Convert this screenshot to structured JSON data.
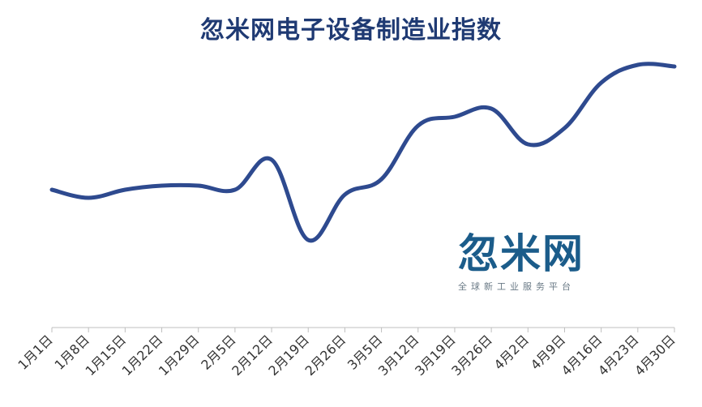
{
  "chart_data": {
    "type": "line",
    "title": "忽米网电子设备制造业指数",
    "xlabel": "",
    "ylabel": "",
    "categories": [
      "1月1日",
      "1月8日",
      "1月15日",
      "1月22日",
      "1月29日",
      "2月5日",
      "2月12日",
      "2月19日",
      "2月26日",
      "3月5日",
      "3月12日",
      "3月19日",
      "3月26日",
      "4月2日",
      "4月9日",
      "4月16日",
      "4月23日",
      "4月30日"
    ],
    "values": [
      234,
      244,
      234,
      229,
      229,
      234,
      197,
      296,
      240,
      221,
      155,
      144,
      134,
      178,
      158,
      102,
      80,
      82
    ],
    "y_inverted_screen_units": true,
    "grid": false,
    "legend": "none",
    "line_color": "#2e4a8f"
  },
  "watermark": {
    "brand": "忽米网",
    "tagline": "全球新工业服务平台"
  }
}
